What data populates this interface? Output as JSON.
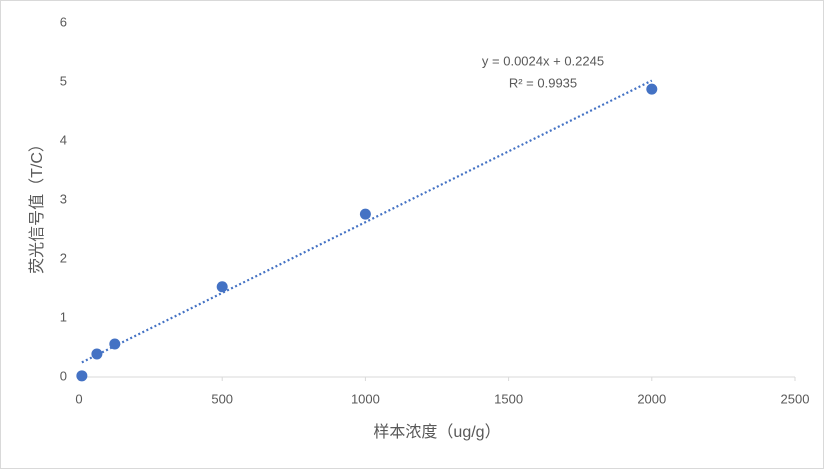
{
  "chart_data": {
    "type": "scatter",
    "x_label": "样本浓度（ug/g）",
    "y_label": "荧光信号值（T/C）",
    "series": [
      {
        "color": "#4472c4",
        "x": [
          10,
          62.5,
          125,
          500,
          1000,
          2000
        ],
        "values": [
          0.02,
          0.39,
          0.56,
          1.53,
          2.76,
          4.88
        ]
      }
    ],
    "trendline": {
      "slope": 0.0024,
      "intercept": 0.2245,
      "equation": "y = 0.0024x + 0.2245",
      "r2_label": "R² = 0.9935",
      "style": "dotted"
    },
    "xlim": [
      0,
      2500
    ],
    "xticks": [
      0,
      500,
      1000,
      1500,
      2000,
      2500
    ],
    "ylim": [
      0,
      6
    ],
    "yticks": [
      0,
      1,
      2,
      3,
      4,
      5,
      6
    ],
    "grid": false
  }
}
